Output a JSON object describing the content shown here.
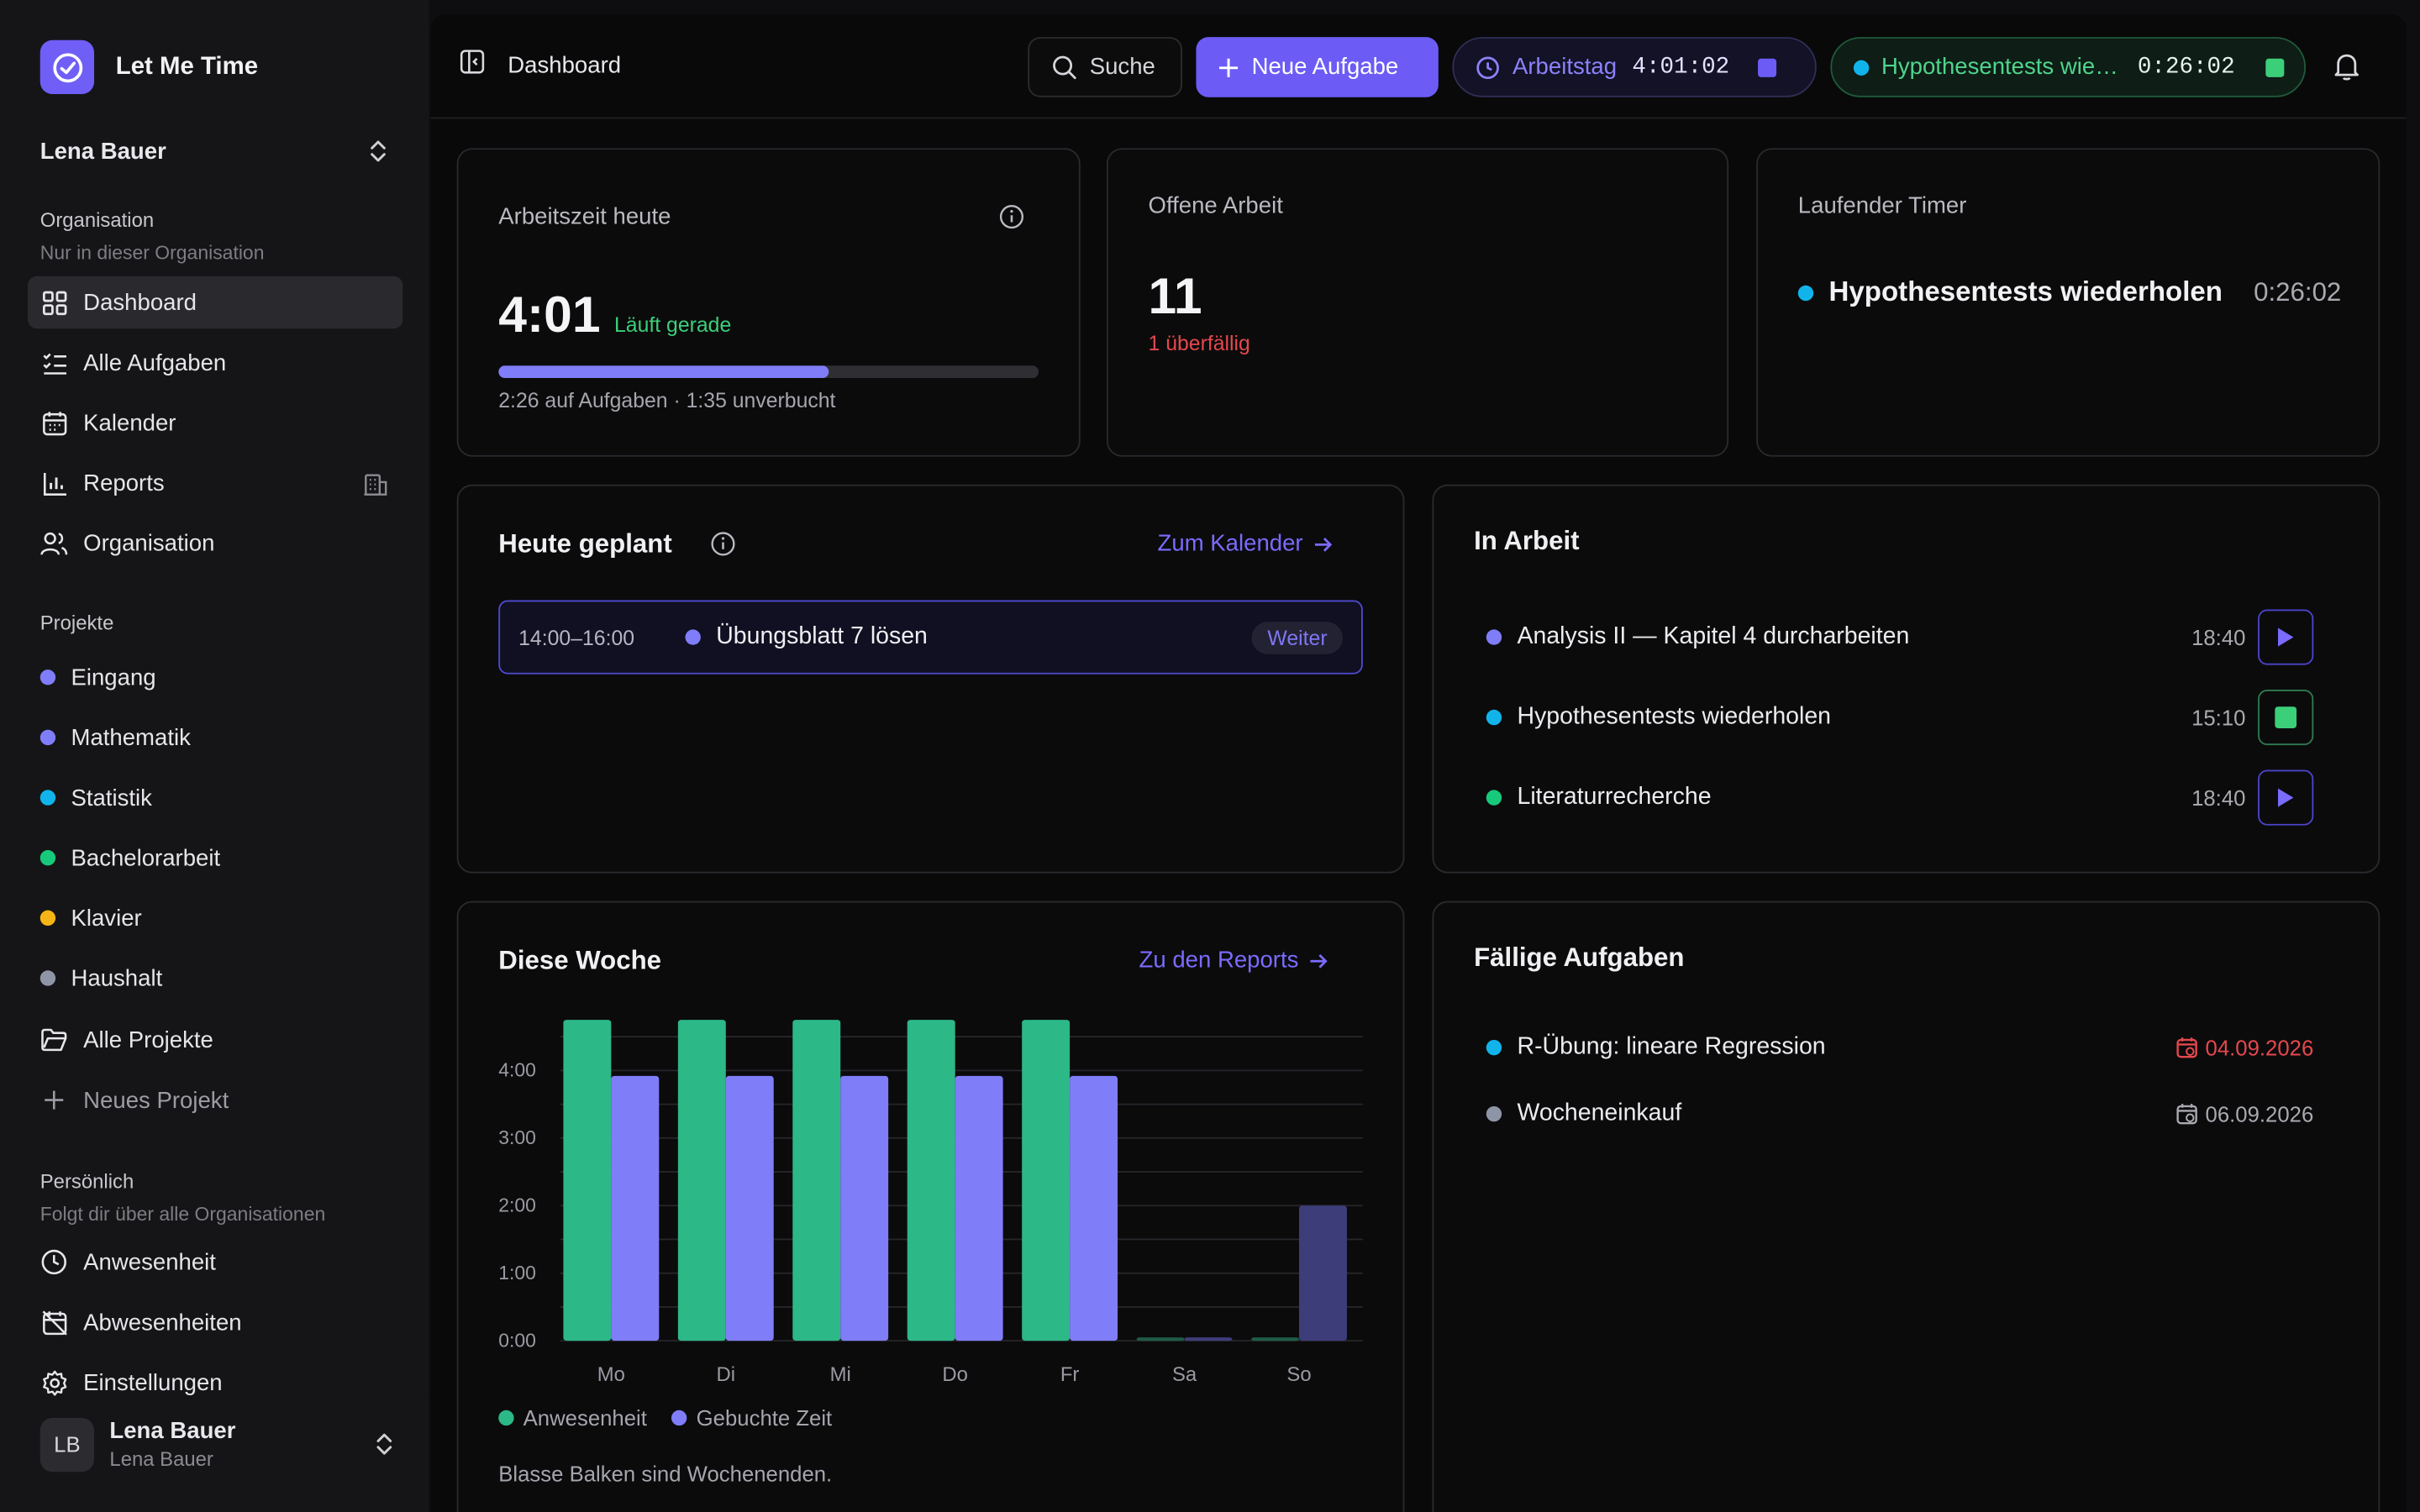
{
  "app": {
    "name": "Let Me Time",
    "accent": "#6c5cf5"
  },
  "sidebar": {
    "org_user": "Lena Bauer",
    "org_section": {
      "title": "Organisation",
      "subtitle": "Nur in dieser Organisation"
    },
    "nav": [
      {
        "label": "Dashboard",
        "icon": "grid-icon",
        "active": true
      },
      {
        "label": "Alle Aufgaben",
        "icon": "checklist-icon"
      },
      {
        "label": "Kalender",
        "icon": "calendar-icon"
      },
      {
        "label": "Reports",
        "icon": "bar-chart-icon"
      },
      {
        "label": "Organisation",
        "icon": "users-icon"
      }
    ],
    "projects_title": "Projekte",
    "projects": [
      {
        "label": "Eingang",
        "color": "#7f7df7"
      },
      {
        "label": "Mathematik",
        "color": "#7f7df7"
      },
      {
        "label": "Statistik",
        "color": "#11b4ea"
      },
      {
        "label": "Bachelorarbeit",
        "color": "#17c97a"
      },
      {
        "label": "Klavier",
        "color": "#f5b516"
      },
      {
        "label": "Haushalt",
        "color": "#8e95a6"
      }
    ],
    "all_projects": "Alle Projekte",
    "new_project": "Neues Projekt",
    "personal_section": {
      "title": "Persönlich",
      "subtitle": "Folgt dir über alle Organisationen"
    },
    "personal": [
      {
        "label": "Anwesenheit",
        "icon": "clock-icon"
      },
      {
        "label": "Abwesenheiten",
        "icon": "calendar-off-icon"
      },
      {
        "label": "Einstellungen",
        "icon": "gear-icon"
      }
    ],
    "user": {
      "initials": "LB",
      "name": "Lena Bauer",
      "sub": "Lena Bauer"
    }
  },
  "topbar": {
    "title": "Dashboard",
    "search": "Suche",
    "new_task": "Neue Aufgabe",
    "workday": {
      "label": "Arbeitstag",
      "time": "4:01:02"
    },
    "running_task": {
      "label": "Hypothesentests wiederholen",
      "time": "0:26:02"
    }
  },
  "stats": {
    "worktime": {
      "label": "Arbeitszeit heute",
      "value": "4:01",
      "status": "Läuft gerade",
      "progress": 0.61,
      "detail": "2:26 auf Aufgaben · 1:35 unverbucht"
    },
    "open": {
      "label": "Offene Arbeit",
      "value": "11",
      "overdue": "1 überfällig"
    },
    "timer": {
      "label": "Laufender Timer",
      "task": "Hypothesentests wiederholen",
      "time": "0:26:02"
    }
  },
  "planned": {
    "title": "Heute geplant",
    "link": "Zum Kalender",
    "items": [
      {
        "time": "14:00–16:00",
        "title": "Übungsblatt 7 lösen",
        "badge": "Weiter",
        "color": "#7f7df7"
      }
    ]
  },
  "in_progress": {
    "title": "In Arbeit",
    "items": [
      {
        "title": "Analysis II — Kapitel 4 durcharbeiten",
        "time": "18:40",
        "color": "#7f7df7",
        "running": false
      },
      {
        "title": "Hypothesentests wiederholen",
        "time": "15:10",
        "color": "#11b4ea",
        "running": true
      },
      {
        "title": "Literaturrecherche",
        "time": "18:40",
        "color": "#17c97a",
        "running": false
      }
    ]
  },
  "week": {
    "title": "Diese Woche",
    "link": "Zu den Reports",
    "legend": [
      "Anwesenheit",
      "Gebuchte Zeit"
    ],
    "note": "Blasse Balken sind Wochenenden."
  },
  "due": {
    "title": "Fällige Aufgaben",
    "items": [
      {
        "title": "R-Übung: lineare Regression",
        "date": "04.09.2026",
        "color": "#11b4ea",
        "overdue": true
      },
      {
        "title": "Wocheneinkauf",
        "date": "06.09.2026",
        "color": "#8e95a6",
        "overdue": false
      }
    ]
  },
  "chart_data": {
    "type": "bar",
    "categories": [
      "Mo",
      "Di",
      "Mi",
      "Do",
      "Fr",
      "Sa",
      "So"
    ],
    "series": [
      {
        "name": "Anwesenheit",
        "values": [
          4.75,
          4.75,
          4.75,
          4.75,
          4.75,
          0.05,
          0.05
        ],
        "color": "#2db887"
      },
      {
        "name": "Gebuchte Zeit",
        "values": [
          3.92,
          3.92,
          3.92,
          3.92,
          3.92,
          0.05,
          2.0
        ],
        "color": "#7f7df7"
      }
    ],
    "yticks": [
      "0:00",
      "1:00",
      "2:00",
      "3:00",
      "4:00"
    ],
    "ylim": [
      0,
      4.75
    ],
    "grid": true,
    "legend": "bottom-left"
  }
}
